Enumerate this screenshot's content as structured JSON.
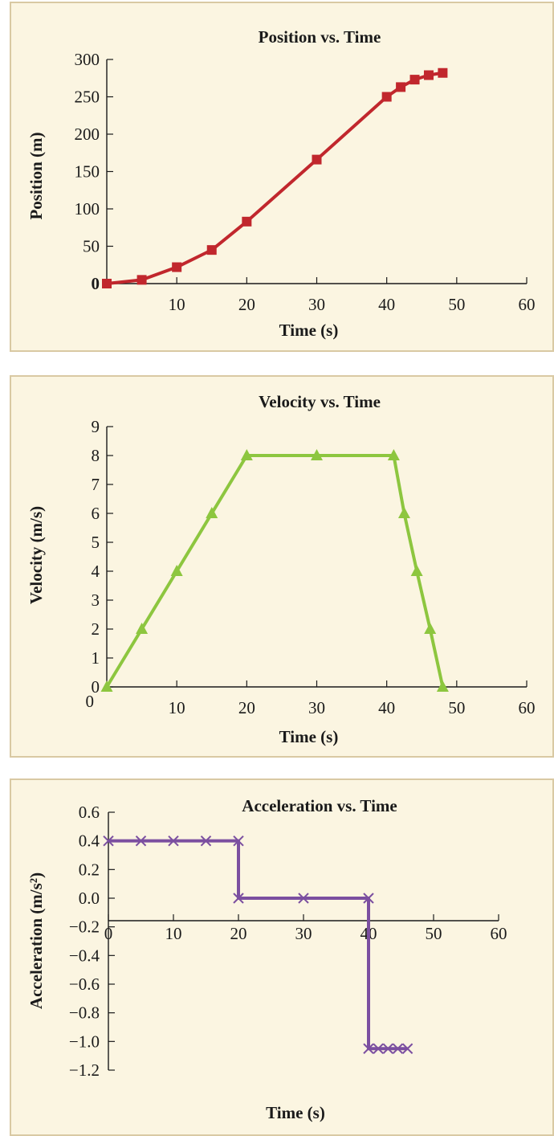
{
  "colors": {
    "panel_background": "#fbf5e1",
    "panel_border": "#d9c9a3",
    "position_series": "#c1272d",
    "velocity_series": "#8dc63f",
    "acceleration_series": "#7b4fa0"
  },
  "chart_data": [
    {
      "type": "line",
      "title": "Position vs. Time",
      "xlabel": "Time (s)",
      "ylabel": "Position (m)",
      "xlim": [
        0,
        60
      ],
      "ylim": [
        0,
        300
      ],
      "xticks": [
        10,
        20,
        30,
        40,
        50,
        60
      ],
      "xtick_labels": [
        "10",
        "20",
        "30",
        "40",
        "50",
        "60"
      ],
      "yticks": [
        0,
        50,
        100,
        150,
        200,
        250,
        300
      ],
      "ytick_labels": [
        "0",
        "50",
        "100",
        "150",
        "200",
        "250",
        "300"
      ],
      "marker": "square",
      "grid": false,
      "series": [
        {
          "x": [
            0,
            5,
            10,
            15,
            20,
            30,
            40,
            42,
            44,
            46,
            48
          ],
          "values": [
            0,
            5,
            22,
            45,
            83,
            166,
            250,
            263,
            273,
            279,
            282
          ]
        }
      ]
    },
    {
      "type": "line",
      "title": "Velocity vs. Time",
      "xlabel": "Time (s)",
      "ylabel": "Velocity (m/s)",
      "xlim": [
        0,
        60
      ],
      "ylim": [
        0,
        9
      ],
      "xticks": [
        10,
        20,
        30,
        40,
        50,
        60
      ],
      "xtick_labels": [
        "10",
        "20",
        "30",
        "40",
        "50",
        "60"
      ],
      "yticks": [
        0,
        1,
        2,
        3,
        4,
        5,
        6,
        7,
        8,
        9
      ],
      "ytick_labels": [
        "0",
        "1",
        "2",
        "3",
        "4",
        "5",
        "6",
        "7",
        "8",
        "9"
      ],
      "marker": "triangle",
      "grid": false,
      "series": [
        {
          "x": [
            0,
            5,
            10,
            15,
            20,
            30,
            41,
            42.5,
            44.3,
            46.2,
            48
          ],
          "values": [
            0,
            2,
            4,
            6,
            8,
            8,
            8,
            6,
            4,
            2,
            0
          ]
        }
      ]
    },
    {
      "type": "line",
      "title": "Acceleration vs. Time",
      "xlabel": "Time (s)",
      "ylabel": "Acceleration (m/s²)",
      "xlim": [
        0,
        60
      ],
      "ylim": [
        -1.2,
        0.6
      ],
      "xticks": [
        0,
        10,
        20,
        30,
        40,
        50,
        60
      ],
      "xtick_labels": [
        "0",
        "10",
        "20",
        "30",
        "40",
        "50",
        "60"
      ],
      "yticks": [
        0.6,
        0.4,
        0.2,
        0.0,
        -0.2,
        -0.4,
        -0.6,
        -0.8,
        -1.0,
        -1.2
      ],
      "ytick_labels": [
        "0.6",
        "0.4",
        "0.2",
        "0.0",
        "−0.2",
        "−0.4",
        "−0.6",
        "−0.8",
        "−1.0",
        "−1.2"
      ],
      "marker": "x",
      "step": true,
      "grid": false,
      "series": [
        {
          "x": [
            0,
            5,
            10,
            15,
            20,
            20,
            30,
            40,
            40,
            41.5,
            43,
            44.5,
            46
          ],
          "values": [
            0.4,
            0.4,
            0.4,
            0.4,
            0.4,
            0.0,
            0.0,
            0.0,
            -1.05,
            -1.05,
            -1.05,
            -1.05,
            -1.05
          ]
        }
      ]
    }
  ]
}
